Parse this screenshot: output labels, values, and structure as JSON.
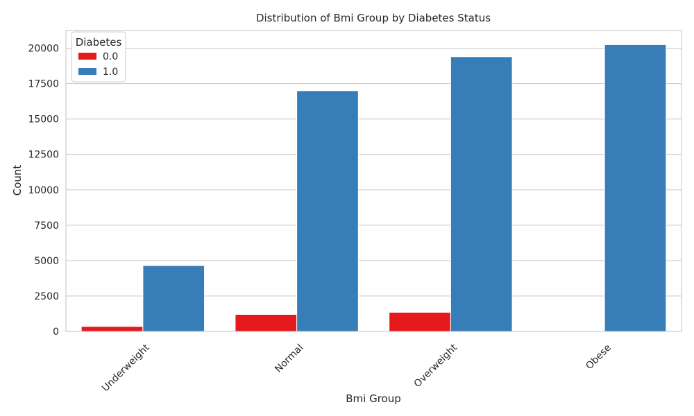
{
  "chart_data": {
    "type": "bar",
    "title": "Distribution of Bmi Group by Diabetes Status",
    "xlabel": "Bmi Group",
    "ylabel": "Count",
    "categories": [
      "Underweight",
      "Normal",
      "Overweight",
      "Obese"
    ],
    "series": [
      {
        "name": "0.0",
        "color": "#e41a1c",
        "values": [
          350,
          1200,
          1350,
          0
        ]
      },
      {
        "name": "1.0",
        "color": "#377eb8",
        "values": [
          4650,
          17000,
          19400,
          20250
        ]
      }
    ],
    "ylim": [
      0,
      21250
    ],
    "yticks": [
      0,
      2500,
      5000,
      7500,
      10000,
      12500,
      15000,
      17500,
      20000
    ],
    "ytick_labels": [
      "0",
      "2500",
      "5000",
      "7500",
      "10000",
      "12500",
      "15000",
      "17500",
      "20000"
    ],
    "legend": {
      "title": "Diabetes",
      "placement": "top-left"
    },
    "grid": true,
    "xtick_rotation": 45
  }
}
